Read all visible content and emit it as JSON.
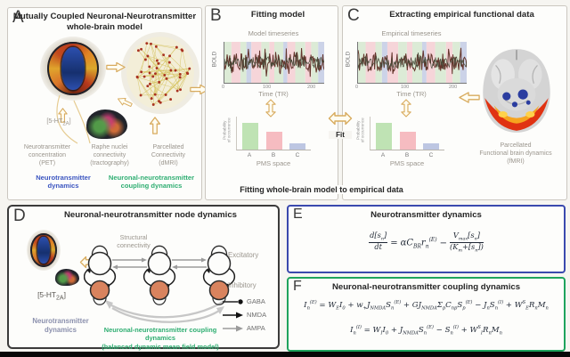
{
  "panel_a": {
    "letter": "A",
    "title": "Mutually Coupled Neuronal-Neurotransmitter\nwhole-brain model",
    "receptor_html": "[5-HT<sub>2A</sub>]",
    "caption_pet": "Neurotransmitter\nconcentration\n(PET)",
    "caption_raphe": "Raphe nuclei\nconnectivity\n(tractography)",
    "caption_dmri": "Parcellated\nConnectivity\n(dMRI)",
    "label_blue": "Neurotransmitter\ndynamics",
    "label_green": "Neuronal-neurotransmitter\ncoupling dynamics"
  },
  "panel_b": {
    "letter": "B",
    "title": "Fitting model",
    "plot_title": "Model timeseries"
  },
  "panel_c": {
    "letter": "C",
    "title": "Extracting empirical functional data",
    "plot_title": "Empirical timeseries",
    "brain_caption": "Parcellated\nFunctional brain dynamics\n(fMRI)"
  },
  "timeseries": {
    "ylabel": "BOLD",
    "xlabel": "Time (TR)",
    "xticks": [
      "0",
      "100",
      "200"
    ],
    "bands": [
      {
        "c": "#dcebd6",
        "w": 7
      },
      {
        "c": "#f6d5d9",
        "w": 9
      },
      {
        "c": "#dcebd6",
        "w": 6
      },
      {
        "c": "#ccd3e8",
        "w": 5
      },
      {
        "c": "#f6d5d9",
        "w": 10
      },
      {
        "c": "#dcebd6",
        "w": 8
      },
      {
        "c": "#f6d5d9",
        "w": 5
      },
      {
        "c": "#dcebd6",
        "w": 9
      },
      {
        "c": "#ccd3e8",
        "w": 4
      },
      {
        "c": "#f6d5d9",
        "w": 8
      },
      {
        "c": "#dcebd6",
        "w": 10
      },
      {
        "c": "#f6d5d9",
        "w": 6
      },
      {
        "c": "#dcebd6",
        "w": 7
      },
      {
        "c": "#ccd3e8",
        "w": 6
      }
    ]
  },
  "pms": {
    "ylabel": "Probability\nof occurrence",
    "xlabel": "PMS space",
    "categories": [
      "A",
      "B",
      "C"
    ],
    "values": [
      0.8,
      0.55,
      0.2
    ],
    "colors": [
      "#bfe3b4",
      "#f6bcc1",
      "#bdc6e2"
    ]
  },
  "fit_label": "Fit",
  "fitting_caption": "Fitting whole-brain model to empirical data",
  "panel_d": {
    "letter": "D",
    "title": "Neuronal-neurotransmitter node dynamics",
    "structural": "Structural\nconnectivity",
    "excitatory": "Excitatory",
    "inhibitory": "Inhibitory",
    "legend": [
      {
        "label": "GABA"
      },
      {
        "label": "NMDA"
      },
      {
        "label": "AMPA"
      }
    ],
    "receptor_html": "[5-HT<sub>2A</sub>]",
    "label_blue": "Neurotransmitter\ndynamics",
    "label_green": "Neuronal-neurotransmitter coupling dynamics\n(balanced dynamic mean field model)"
  },
  "panel_e": {
    "letter": "E",
    "title": "Neurotransmitter dynamics",
    "equation_html": "<span class='fr'><span class='nu'>d[s<sub>n</sub>]</span><span class='de'>dt</span></span><span class='op'>=</span>αC<sub>BR</sub>r<sub>n</sub><sup>(E)</sup><span class='op'>−</span><span class='fr'><span class='nu'>V<sub>max</sub>[s<sub>n</sub>]</span><span class='de'>(K<sub>m</sub>+[s<sub>n</sub>])</span></span>"
  },
  "panel_f": {
    "letter": "F",
    "title": "Neuronal-neurotransmitter coupling dynamics",
    "eq1_html": "I<sub>n</sub><sup>(E)</sup> = W<sub>E</sub>I<sub>0</sub> + w<sub>+</sub>J<sub>NMDA</sub>S<sub>n</sub><sup>(E)</sup> + GJ<sub>NMDA</sub>&Sigma;<sub>p</sub>C<sub>np</sub>S<sub>p</sub><sup>(E)</sup> − J<sub>n</sub>S<sub>n</sub><sup>(I)</sup> + W<sup>S</sup><sub>E</sub>R<sub>n</sub>M<sub>n</sub>",
    "eq2_html": "I<sub>n</sub><sup>(I)</sup> = W<sub>I</sub>I<sub>0</sub> + J<sub>NMDA</sub>S<sub>n</sub><sup>(E)</sup> − S<sub>n</sub><sup>(I)</sup> + W<sup>S</sup><sub>I</sub>R<sub>n</sub>M<sub>n</sub>"
  },
  "colors": {
    "blue_text": "#3b55c0",
    "green_text": "#2fae72",
    "yellow_arrow": "#d8ab5e",
    "inhibitory_node": "#d9835e",
    "bar_green": "#bfe3b4",
    "bar_pink": "#f6bcc1",
    "bar_blue": "#bdc6e2"
  }
}
